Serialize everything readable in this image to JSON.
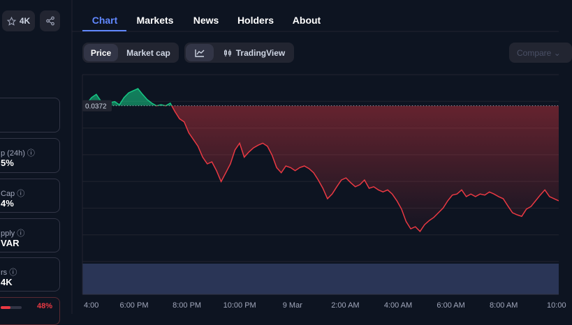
{
  "header": {
    "star_count": "4K"
  },
  "sidebar": {
    "cards": [
      {
        "label": "p (24h)",
        "value": "5%"
      },
      {
        "label": "Cap",
        "value": "4%"
      },
      {
        "label": "pply",
        "value": "VAR"
      },
      {
        "label": "rs",
        "value": "4K"
      }
    ],
    "progress": {
      "value": 48,
      "label": "48%"
    }
  },
  "tabs": [
    "Chart",
    "Markets",
    "News",
    "Holders",
    "About"
  ],
  "toolbar": {
    "toggles": [
      "Price",
      "Market cap"
    ],
    "tradingview": "TradingView",
    "compare": "Compare"
  },
  "chart_data": {
    "type": "line",
    "reference": {
      "value": 0.0372,
      "label": "0.0372"
    },
    "ylim": [
      0.0342,
      0.0378
    ],
    "x_labels": [
      "4:00",
      "6:00 PM",
      "8:00 PM",
      "10:00 PM",
      "9 Mar",
      "2:00 AM",
      "4:00 AM",
      "6:00 AM",
      "8:00 AM",
      "10:00"
    ],
    "up_color": "#16c784",
    "down_color": "#ea3943",
    "values": [
      0.03722,
      0.03725,
      0.03736,
      0.03742,
      0.03729,
      0.03725,
      0.03726,
      0.03728,
      0.03722,
      0.03736,
      0.03745,
      0.03749,
      0.03753,
      0.03742,
      0.03732,
      0.03725,
      0.0372,
      0.03722,
      0.0372,
      0.03725,
      0.03709,
      0.03695,
      0.03689,
      0.03668,
      0.03655,
      0.03642,
      0.03621,
      0.03608,
      0.03612,
      0.03595,
      0.03574,
      0.03591,
      0.03608,
      0.03635,
      0.03648,
      0.03621,
      0.03631,
      0.03639,
      0.03644,
      0.03648,
      0.03642,
      0.03625,
      0.03601,
      0.03591,
      0.03604,
      0.03601,
      0.03595,
      0.03601,
      0.03604,
      0.03599,
      0.03591,
      0.03577,
      0.03561,
      0.03541,
      0.0355,
      0.03564,
      0.03577,
      0.03581,
      0.03572,
      0.03564,
      0.03568,
      0.03577,
      0.03561,
      0.03564,
      0.03558,
      0.03554,
      0.03558,
      0.0355,
      0.03537,
      0.03521,
      0.03497,
      0.03483,
      0.03487,
      0.03478,
      0.03491,
      0.03499,
      0.03505,
      0.03514,
      0.03523,
      0.03537,
      0.03548,
      0.0355,
      0.03558,
      0.03545,
      0.0355,
      0.03545,
      0.0355,
      0.03548,
      0.03554,
      0.0355,
      0.03545,
      0.03541,
      0.03527,
      0.03514,
      0.0351,
      0.03507,
      0.03521,
      0.03526,
      0.03537,
      0.03548,
      0.03558,
      0.03545,
      0.03541,
      0.03537
    ]
  }
}
